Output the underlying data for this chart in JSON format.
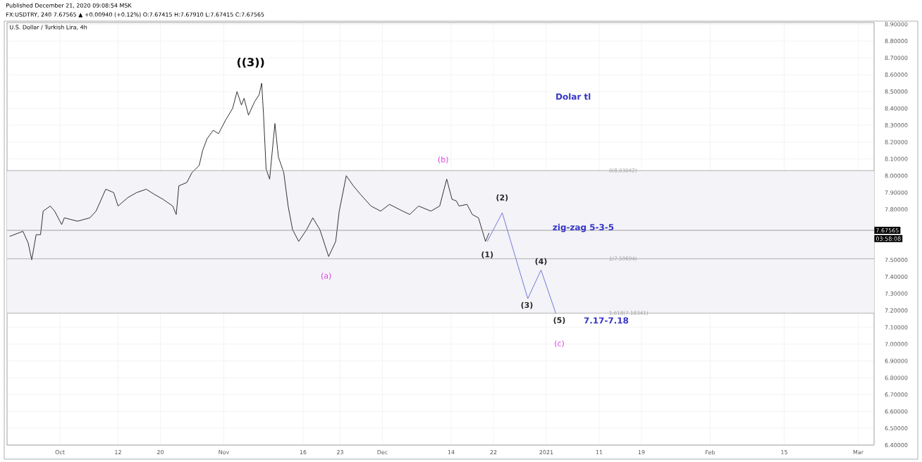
{
  "chart_data": {
    "type": "line",
    "title": "U.S. Dollar / Turkish Lira, 4h",
    "subtitle": "FX:USDTRY, 240 7.67565 ▲ +0.00940 (+0.12%) O:7.67415 H:7.67910 L:7.67415 C:7.67565",
    "xlim": [
      "2020-09-21",
      "2021-03-04"
    ],
    "ylim": [
      6.4,
      8.91
    ],
    "grid": true,
    "xticks": [
      {
        "value": "2020-10-01",
        "label": "Oct"
      },
      {
        "value": "2020-10-12",
        "label": "12"
      },
      {
        "value": "2020-10-20",
        "label": "20"
      },
      {
        "value": "2020-11-01",
        "label": "Nov"
      },
      {
        "value": "2020-11-16",
        "label": "16"
      },
      {
        "value": "2020-11-23",
        "label": "23"
      },
      {
        "value": "2020-12-01",
        "label": "Dec"
      },
      {
        "value": "2020-12-14",
        "label": "14"
      },
      {
        "value": "2020-12-22",
        "label": "22"
      },
      {
        "value": "2021-01-01",
        "label": "2021"
      },
      {
        "value": "2021-01-11",
        "label": "11"
      },
      {
        "value": "2021-01-19",
        "label": "19"
      },
      {
        "value": "2021-02-01",
        "label": "Feb"
      },
      {
        "value": "2021-02-15",
        "label": "15"
      },
      {
        "value": "2021-03-01",
        "label": "Mar"
      }
    ],
    "yticks": [
      {
        "value": 6.4,
        "label": "6.40000"
      },
      {
        "value": 6.5,
        "label": "6.50000"
      },
      {
        "value": 6.6,
        "label": "6.60000"
      },
      {
        "value": 6.7,
        "label": "6.70000"
      },
      {
        "value": 6.8,
        "label": "6.80000"
      },
      {
        "value": 6.9,
        "label": "6.90000"
      },
      {
        "value": 7.0,
        "label": "7.00000"
      },
      {
        "value": 7.1,
        "label": "7.10000"
      },
      {
        "value": 7.2,
        "label": "7.20000"
      },
      {
        "value": 7.3,
        "label": "7.30000"
      },
      {
        "value": 7.4,
        "label": "7.40000"
      },
      {
        "value": 7.5,
        "label": "7.50000"
      },
      {
        "value": 7.6,
        "label": null
      },
      {
        "value": 7.7,
        "label": null
      },
      {
        "value": 7.8,
        "label": "7.80000"
      },
      {
        "value": 7.9,
        "label": "7.90000"
      },
      {
        "value": 8.0,
        "label": "8.00000"
      },
      {
        "value": 8.1,
        "label": "8.10000"
      },
      {
        "value": 8.2,
        "label": "8.20000"
      },
      {
        "value": 8.3,
        "label": "8.30000"
      },
      {
        "value": 8.4,
        "label": "8.40000"
      },
      {
        "value": 8.5,
        "label": "8.50000"
      },
      {
        "value": 8.6,
        "label": "8.60000"
      },
      {
        "value": 8.7,
        "label": "8.70000"
      },
      {
        "value": 8.8,
        "label": "8.80000"
      },
      {
        "value": 8.9,
        "label": "8.90000"
      }
    ],
    "series": [
      {
        "color": "#333333",
        "x": [
          "2020-09-21T12:00",
          "2020-09-24T00:00",
          "2020-09-25T00:00",
          "2020-09-25T16:00",
          "2020-09-26T12:00",
          "2020-09-27T08:00",
          "2020-09-27T20:00",
          "2020-09-29T04:00",
          "2020-09-30T00:00",
          "2020-10-01T08:00",
          "2020-10-01T20:00",
          "2020-10-04T08:00",
          "2020-10-06T16:00",
          "2020-10-07T20:00",
          "2020-10-09T16:00",
          "2020-10-11T04:00",
          "2020-10-12T00:00",
          "2020-10-13T20:00",
          "2020-10-15T12:00",
          "2020-10-17T08:00",
          "2020-10-18T20:00",
          "2020-10-20T12:00",
          "2020-10-22T08:00",
          "2020-10-23T00:00",
          "2020-10-23T12:00",
          "2020-10-25T00:00",
          "2020-10-26T00:00",
          "2020-10-27T08:00",
          "2020-10-28T00:00",
          "2020-10-28T20:00",
          "2020-10-30T00:00",
          "2020-10-31T00:00",
          "2020-11-01T08:00",
          "2020-11-02T16:00",
          "2020-11-03T12:00",
          "2020-11-04T08:00",
          "2020-11-04T20:00",
          "2020-11-05T16:00",
          "2020-11-06T20:00",
          "2020-11-07T16:00",
          "2020-11-08T04:00",
          "2020-11-08T12:00",
          "2020-11-09T00:00",
          "2020-11-09T16:00",
          "2020-11-10T16:00",
          "2020-11-11T08:00",
          "2020-11-12T08:00",
          "2020-11-13T04:00",
          "2020-11-14T00:00",
          "2020-11-15T04:00",
          "2020-11-16T16:00",
          "2020-11-17T20:00",
          "2020-11-19T04:00",
          "2020-11-20T20:00",
          "2020-11-22T04:00",
          "2020-11-22T20:00",
          "2020-11-24T04:00",
          "2020-11-25T12:00",
          "2020-11-26T20:00",
          "2020-11-28T20:00",
          "2020-11-30T16:00",
          "2020-12-02T08:00",
          "2020-12-04T20:00",
          "2020-12-06T04:00",
          "2020-12-07T20:00",
          "2020-12-10T04:00",
          "2020-12-11T20:00",
          "2020-12-13T04:00",
          "2020-12-14T04:00",
          "2020-12-15T00:00",
          "2020-12-15T12:00",
          "2020-12-17T00:00",
          "2020-12-18T00:00",
          "2020-12-19T04:00",
          "2020-12-20T12:00",
          "2020-12-21T04:00"
        ],
        "values": [
          7.64,
          7.67,
          7.6,
          7.5,
          7.65,
          7.65,
          7.79,
          7.82,
          7.79,
          7.71,
          7.75,
          7.73,
          7.75,
          7.79,
          7.92,
          7.9,
          7.82,
          7.87,
          7.9,
          7.92,
          7.89,
          7.86,
          7.82,
          7.77,
          7.94,
          7.96,
          8.02,
          8.06,
          8.15,
          8.22,
          8.27,
          8.25,
          8.33,
          8.4,
          8.5,
          8.42,
          8.46,
          8.36,
          8.44,
          8.48,
          8.55,
          8.37,
          8.04,
          7.98,
          8.31,
          8.11,
          8.02,
          7.82,
          7.68,
          7.61,
          7.68,
          7.75,
          7.68,
          7.52,
          7.61,
          7.79,
          8.0,
          7.94,
          7.89,
          7.82,
          7.79,
          7.83,
          7.79,
          7.77,
          7.82,
          7.79,
          7.82,
          7.98,
          7.86,
          7.85,
          7.82,
          7.83,
          7.77,
          7.75,
          7.61,
          7.66
        ]
      },
      {
        "color": "#7378d8",
        "x": [
          "2020-12-20T20:00",
          "2020-12-23T16:00",
          "2020-12-28T12:00",
          "2020-12-31T00:00",
          "2021-01-02T20:00"
        ],
        "values": [
          7.61,
          7.78,
          7.27,
          7.44,
          7.18
        ]
      }
    ],
    "bands": [
      {
        "axis": "y",
        "from": 7.18341,
        "to": 8.03042,
        "color": "#f3f3f8"
      }
    ],
    "ref_lines": [
      {
        "axis": "y",
        "value": 7.67565,
        "label": "7.67565",
        "color": "#8a8a8a"
      },
      {
        "axis": "y",
        "value": 8.03042,
        "label": "0(8.03042)",
        "color": "#a0a0a0"
      },
      {
        "axis": "y",
        "value": 7.50694,
        "label": "1(7.50694)",
        "color": "#a0a0a0"
      },
      {
        "axis": "y",
        "value": 7.18341,
        "label": "1.618(7.18341)",
        "color": "#a0a0a0"
      }
    ],
    "annotations": [
      "Published December 21, 2020 09:08:54 MSK",
      "03:58:08",
      "((3))",
      "(a)",
      "(b)",
      "(c)",
      {
        "text": "(1)",
        "x": "2020-12-20T20:00",
        "y": 7.53
      },
      "(2)",
      {
        "text": "(3)",
        "x": "2020-12-28T08:00",
        "y": 7.23
      },
      {
        "text": "(4)",
        "x": "2020-12-31T00:00",
        "y": 7.49
      },
      "(5)",
      "7.17-7.18",
      {
        "text": "zig-zag  5-3-5",
        "x": "2021-01-08",
        "y": 7.69
      },
      "Dolar tl"
    ]
  }
}
